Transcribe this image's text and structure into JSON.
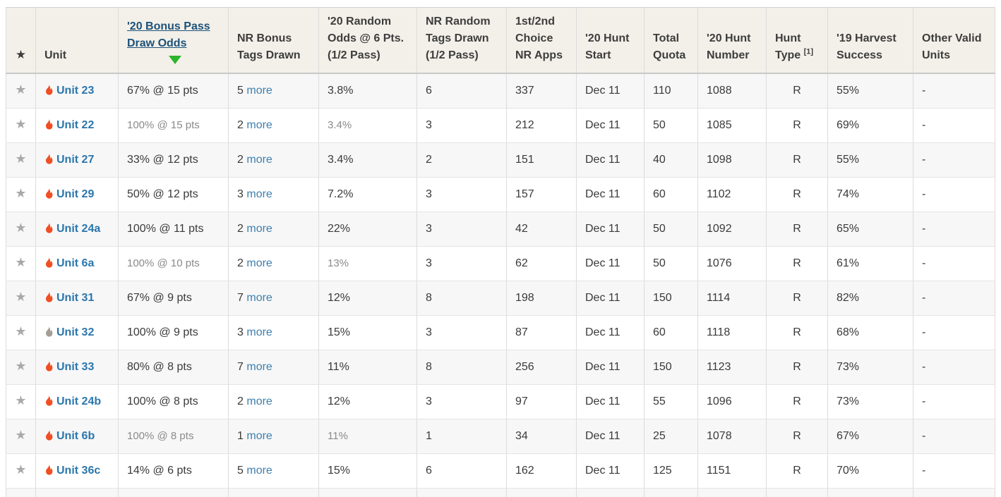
{
  "table": {
    "sort": {
      "column": "'20 Bonus Pass Draw Odds",
      "direction": "desc"
    },
    "more_label": "more",
    "columns": {
      "star": "★",
      "unit": "Unit",
      "bonus_odds": "'20 Bonus Pass Draw Odds",
      "nr_bonus_tags": "NR Bonus Tags Drawn",
      "random_odds": "'20 Random Odds @ 6 Pts. (1/2 Pass)",
      "nr_random_tags": "NR Random Tags Drawn (1/2 Pass)",
      "choice_apps": "1st/2nd Choice NR Apps",
      "hunt_start": "'20 Hunt Start",
      "total_quota": "Total Quota",
      "hunt_number": "'20 Hunt Number",
      "hunt_type": "Hunt Type",
      "hunt_type_footnote": "[1]",
      "harvest": "'19 Harvest Success",
      "other_units": "Other Valid Units"
    },
    "rows": [
      {
        "unit": "Unit 23",
        "flame": "orange",
        "muted": false,
        "bonus_odds": "67% @ 15 pts",
        "bonus_tags": "5",
        "random_odds": "3.8%",
        "random_tags": "6",
        "choice_apps": "337",
        "hunt_start": "Dec 11",
        "total_quota": "110",
        "hunt_number": "1088",
        "hunt_type": "R",
        "harvest": "55%",
        "other_units": "-"
      },
      {
        "unit": "Unit 22",
        "flame": "orange",
        "muted": true,
        "bonus_odds": "100% @ 15 pts",
        "bonus_tags": "2",
        "random_odds": "3.4%",
        "random_tags": "3",
        "choice_apps": "212",
        "hunt_start": "Dec 11",
        "total_quota": "50",
        "hunt_number": "1085",
        "hunt_type": "R",
        "harvest": "69%",
        "other_units": "-"
      },
      {
        "unit": "Unit 27",
        "flame": "orange",
        "muted": false,
        "bonus_odds": "33% @ 12 pts",
        "bonus_tags": "2",
        "random_odds": "3.4%",
        "random_tags": "2",
        "choice_apps": "151",
        "hunt_start": "Dec 11",
        "total_quota": "40",
        "hunt_number": "1098",
        "hunt_type": "R",
        "harvest": "55%",
        "other_units": "-"
      },
      {
        "unit": "Unit 29",
        "flame": "orange",
        "muted": false,
        "bonus_odds": "50% @ 12 pts",
        "bonus_tags": "3",
        "random_odds": "7.2%",
        "random_tags": "3",
        "choice_apps": "157",
        "hunt_start": "Dec 11",
        "total_quota": "60",
        "hunt_number": "1102",
        "hunt_type": "R",
        "harvest": "74%",
        "other_units": "-"
      },
      {
        "unit": "Unit 24a",
        "flame": "orange",
        "muted": false,
        "bonus_odds": "100% @ 11 pts",
        "bonus_tags": "2",
        "random_odds": "22%",
        "random_tags": "3",
        "choice_apps": "42",
        "hunt_start": "Dec 11",
        "total_quota": "50",
        "hunt_number": "1092",
        "hunt_type": "R",
        "harvest": "65%",
        "other_units": "-"
      },
      {
        "unit": "Unit 6a",
        "flame": "orange",
        "muted": true,
        "bonus_odds": "100% @ 10 pts",
        "bonus_tags": "2",
        "random_odds": "13%",
        "random_tags": "3",
        "choice_apps": "62",
        "hunt_start": "Dec 11",
        "total_quota": "50",
        "hunt_number": "1076",
        "hunt_type": "R",
        "harvest": "61%",
        "other_units": "-"
      },
      {
        "unit": "Unit 31",
        "flame": "orange",
        "muted": false,
        "bonus_odds": "67% @ 9 pts",
        "bonus_tags": "7",
        "random_odds": "12%",
        "random_tags": "8",
        "choice_apps": "198",
        "hunt_start": "Dec 11",
        "total_quota": "150",
        "hunt_number": "1114",
        "hunt_type": "R",
        "harvest": "82%",
        "other_units": "-"
      },
      {
        "unit": "Unit 32",
        "flame": "gray",
        "muted": false,
        "bonus_odds": "100% @ 9 pts",
        "bonus_tags": "3",
        "random_odds": "15%",
        "random_tags": "3",
        "choice_apps": "87",
        "hunt_start": "Dec 11",
        "total_quota": "60",
        "hunt_number": "1118",
        "hunt_type": "R",
        "harvest": "68%",
        "other_units": "-"
      },
      {
        "unit": "Unit 33",
        "flame": "orange",
        "muted": false,
        "bonus_odds": "80% @ 8 pts",
        "bonus_tags": "7",
        "random_odds": "11%",
        "random_tags": "8",
        "choice_apps": "256",
        "hunt_start": "Dec 11",
        "total_quota": "150",
        "hunt_number": "1123",
        "hunt_type": "R",
        "harvest": "73%",
        "other_units": "-"
      },
      {
        "unit": "Unit 24b",
        "flame": "orange",
        "muted": false,
        "bonus_odds": "100% @ 8 pts",
        "bonus_tags": "2",
        "random_odds": "12%",
        "random_tags": "3",
        "choice_apps": "97",
        "hunt_start": "Dec 11",
        "total_quota": "55",
        "hunt_number": "1096",
        "hunt_type": "R",
        "harvest": "73%",
        "other_units": "-"
      },
      {
        "unit": "Unit 6b",
        "flame": "orange",
        "muted": true,
        "bonus_odds": "100% @ 8 pts",
        "bonus_tags": "1",
        "random_odds": "11%",
        "random_tags": "1",
        "choice_apps": "34",
        "hunt_start": "Dec 11",
        "total_quota": "25",
        "hunt_number": "1078",
        "hunt_type": "R",
        "harvest": "67%",
        "other_units": "-"
      },
      {
        "unit": "Unit 36c",
        "flame": "orange",
        "muted": false,
        "bonus_odds": "14% @ 6 pts",
        "bonus_tags": "5",
        "random_odds": "15%",
        "random_tags": "6",
        "choice_apps": "162",
        "hunt_start": "Dec 11",
        "total_quota": "125",
        "hunt_number": "1151",
        "hunt_type": "R",
        "harvest": "70%",
        "other_units": "-"
      }
    ]
  },
  "colors": {
    "header_background": "#f3f0e9",
    "odd_row_background": "#f7f7f7",
    "header_sort_link": "#1d5179",
    "sort_arrow_green": "#2db42d",
    "unit_link_blue": "#2b76ad",
    "more_link_blue": "#3e7fae",
    "flame_orange": "#f04e23",
    "flame_gray": "#a49e93",
    "star_gray": "#a9a9a9"
  }
}
